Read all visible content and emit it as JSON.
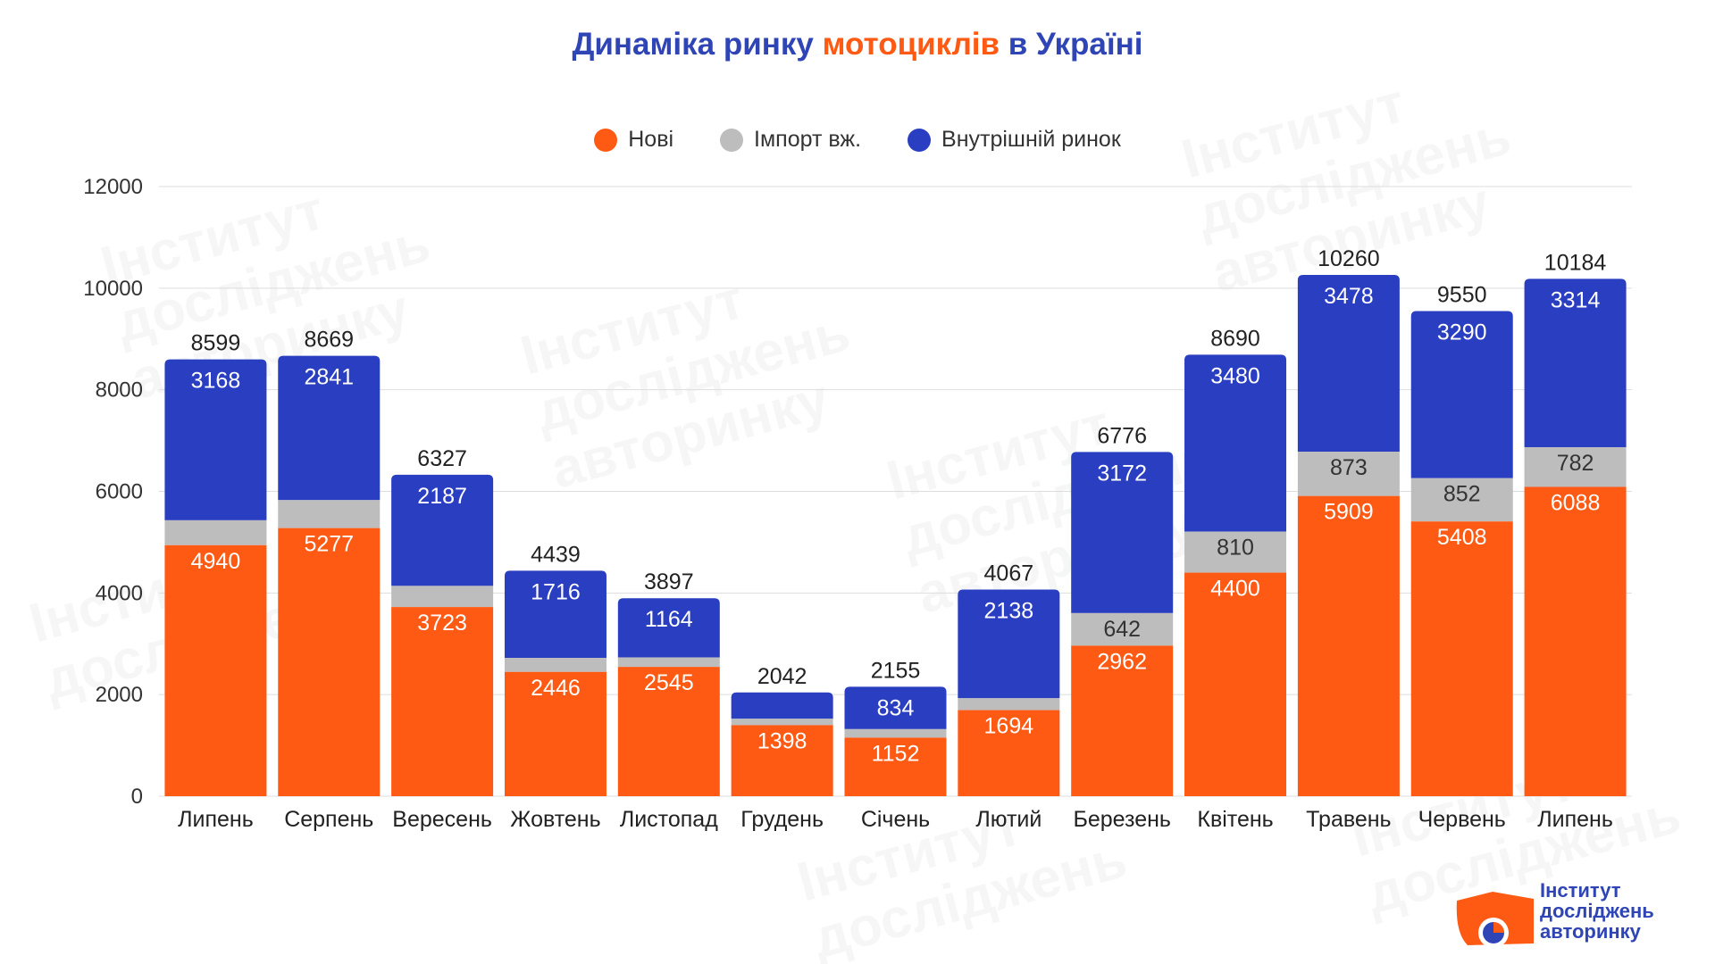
{
  "title": {
    "part1": "Динаміка ринку ",
    "accent": "мотоциклів",
    "part2": " в Україні"
  },
  "colors": {
    "new": "#ff5a14",
    "import": "#bdbdbd",
    "domestic": "#2a3ec2",
    "title": "#2f45b5"
  },
  "chart_data": {
    "type": "bar",
    "stacked": true,
    "categories": [
      "Липень",
      "Серпень",
      "Вересень",
      "Жовтень",
      "Листопад",
      "Грудень",
      "Січень",
      "Лютий",
      "Березень",
      "Квітень",
      "Травень",
      "Червень",
      "Липень"
    ],
    "series": [
      {
        "name": "Нові",
        "values": [
          4940,
          5277,
          3723,
          2446,
          2545,
          1398,
          1152,
          1694,
          2962,
          4400,
          5909,
          5408,
          6088
        ]
      },
      {
        "name": "Імпорт вж.",
        "values": [
          491,
          551,
          417,
          277,
          188,
          127,
          169,
          235,
          642,
          810,
          873,
          852,
          782
        ]
      },
      {
        "name": "Внутрішній ринок",
        "values": [
          3168,
          2841,
          2187,
          1716,
          1164,
          517,
          834,
          2138,
          3172,
          3480,
          3478,
          3290,
          3314
        ]
      }
    ],
    "totals": [
      8599,
      8669,
      6327,
      4439,
      3897,
      2042,
      2155,
      4067,
      6776,
      8690,
      10260,
      9550,
      10184
    ],
    "labeled": {
      "new": [
        true,
        true,
        true,
        true,
        true,
        true,
        true,
        true,
        true,
        true,
        true,
        true,
        true
      ],
      "import": [
        false,
        false,
        false,
        false,
        false,
        false,
        false,
        false,
        true,
        true,
        true,
        true,
        true
      ],
      "domestic": [
        true,
        true,
        true,
        true,
        true,
        false,
        true,
        true,
        true,
        true,
        true,
        true,
        true
      ]
    },
    "yticks": [
      0,
      2000,
      4000,
      6000,
      8000,
      10000,
      12000
    ],
    "ylim": [
      0,
      12000
    ],
    "grid": true,
    "legend_position": "top-center"
  },
  "logo": {
    "line1": "Інститут",
    "line2": "досліджень",
    "line3": "авторинку"
  },
  "watermark": {
    "line1": "Інститут",
    "line2": "досліджень",
    "line3": "авторинку"
  }
}
